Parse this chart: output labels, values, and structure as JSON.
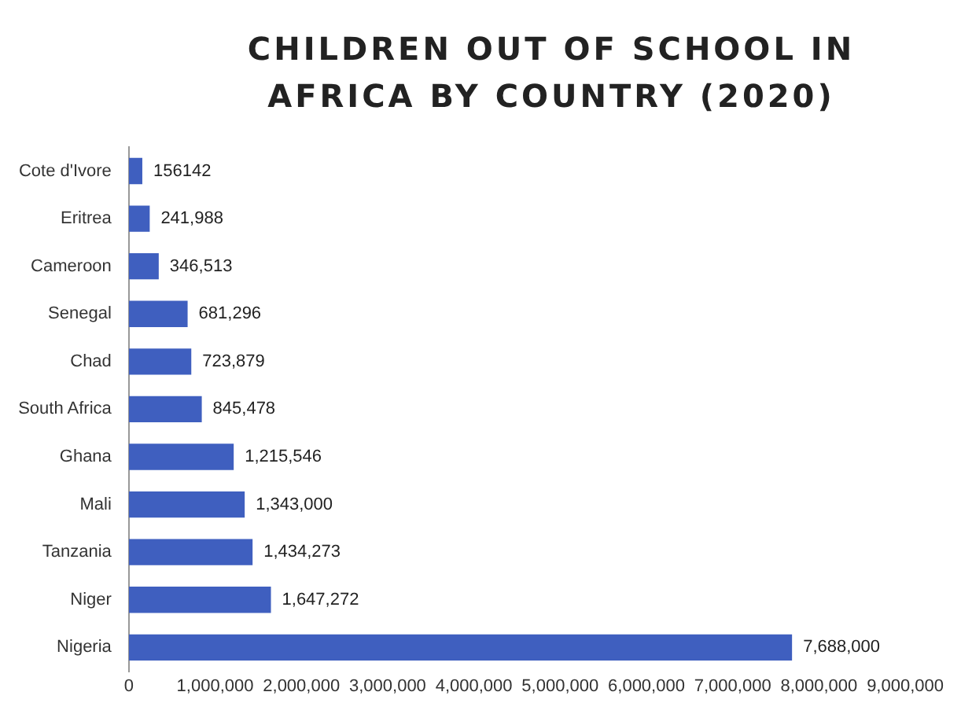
{
  "chart_data": {
    "type": "bar",
    "orientation": "horizontal",
    "title": "CHILDREN OUT OF SCHOOL IN AFRICA BY COUNTRY (2020)",
    "categories": [
      "Cote d'Ivore",
      "Eritrea",
      "Cameroon",
      "Senegal",
      "Chad",
      "South Africa",
      "Ghana",
      "Mali",
      "Tanzania",
      "Niger",
      "Nigeria"
    ],
    "values": [
      156142,
      241988,
      346513,
      681296,
      723879,
      845478,
      1215546,
      1343000,
      1434273,
      1647272,
      7688000
    ],
    "value_labels": [
      "156142",
      "241,988",
      "346,513",
      "681,296",
      "723,879",
      "845,478",
      "1,215,546",
      "1,343,000",
      "1,434,273",
      "1,647,272",
      "7,688,000"
    ],
    "color": "#3f5fbf",
    "xlim": [
      0,
      9000000
    ],
    "xticks": [
      0,
      {
        "value": 1000000,
        "label": "1,000,000"
      },
      {
        "value": 2000000,
        "label": "2,000,000"
      },
      {
        "value": 3000000,
        "label": "3,000,000"
      },
      {
        "value": 4000000,
        "label": "4,000,000"
      },
      {
        "value": 5000000,
        "label": "5,000,000"
      },
      {
        "value": 6000000,
        "label": "6,000,000"
      },
      {
        "value": 7000000,
        "label": "7,000,000"
      },
      {
        "value": 8000000,
        "label": "8,000,000"
      },
      {
        "value": 9000000,
        "label": "9,000,000"
      }
    ],
    "grid": false,
    "legend": false
  }
}
